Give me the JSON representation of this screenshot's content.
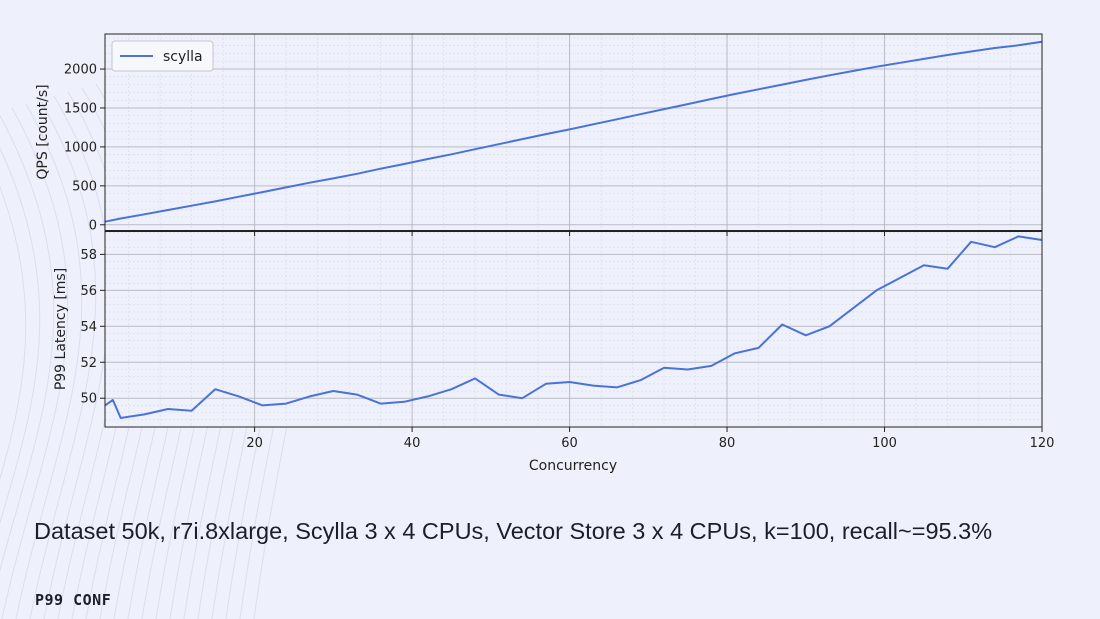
{
  "caption": "Dataset 50k, r7i.8xlarge, Scylla 3 x 4 CPUs, Vector Store 3 x 4 CPUs, k=100, recall~=95.3%",
  "brand": "P99 CONF",
  "colors": {
    "line": "#4a72d8",
    "background": "#eef1fb",
    "grid": "#b9bcc4"
  },
  "chart_data": [
    {
      "type": "line",
      "title": "",
      "xlabel": "",
      "ylabel": "QPS [count/s]",
      "xlim": [
        1,
        120
      ],
      "ylim": [
        -80,
        2450
      ],
      "xticks": [
        "20",
        "40",
        "60",
        "80",
        "100",
        "120"
      ],
      "yticks": [
        "0",
        "500",
        "1000",
        "1500",
        "2000"
      ],
      "grid": true,
      "legend": "top-left",
      "series": [
        {
          "name": "scylla",
          "x": [
            1,
            3,
            6,
            9,
            12,
            15,
            18,
            21,
            24,
            27,
            30,
            33,
            36,
            39,
            42,
            45,
            48,
            51,
            54,
            57,
            60,
            63,
            66,
            69,
            72,
            75,
            78,
            81,
            84,
            87,
            90,
            93,
            96,
            99,
            102,
            105,
            108,
            111,
            114,
            117,
            120
          ],
          "y": [
            40,
            80,
            135,
            190,
            245,
            300,
            360,
            420,
            480,
            540,
            595,
            655,
            720,
            780,
            845,
            905,
            970,
            1035,
            1100,
            1165,
            1225,
            1290,
            1355,
            1420,
            1485,
            1550,
            1615,
            1680,
            1740,
            1800,
            1860,
            1920,
            1975,
            2030,
            2080,
            2130,
            2180,
            2225,
            2270,
            2305,
            2350
          ]
        }
      ]
    },
    {
      "type": "line",
      "title": "",
      "xlabel": "Concurrency",
      "ylabel": "P99 Latency [ms]",
      "xlim": [
        1,
        120
      ],
      "ylim": [
        48.4,
        59.3
      ],
      "xticks": [
        "20",
        "40",
        "60",
        "80",
        "100",
        "120"
      ],
      "yticks": [
        "50",
        "52",
        "54",
        "56",
        "58"
      ],
      "grid": true,
      "series": [
        {
          "x": [
            1,
            2,
            3,
            6,
            9,
            12,
            15,
            18,
            21,
            24,
            27,
            30,
            33,
            36,
            39,
            42,
            45,
            48,
            51,
            54,
            57,
            60,
            63,
            66,
            69,
            72,
            75,
            78,
            81,
            84,
            87,
            90,
            93,
            96,
            99,
            102,
            105,
            108,
            111,
            114,
            117,
            120
          ],
          "y": [
            49.6,
            49.9,
            48.9,
            49.1,
            49.4,
            49.3,
            50.5,
            50.1,
            49.6,
            49.7,
            50.1,
            50.4,
            50.2,
            49.7,
            49.8,
            50.1,
            50.5,
            51.1,
            50.2,
            50.0,
            50.8,
            50.9,
            50.7,
            50.6,
            51.0,
            51.7,
            51.6,
            51.8,
            52.5,
            52.8,
            54.1,
            53.5,
            54.0,
            55.0,
            56.0,
            56.7,
            57.4,
            57.2,
            58.7,
            58.4,
            59.0,
            58.8
          ]
        }
      ]
    }
  ]
}
